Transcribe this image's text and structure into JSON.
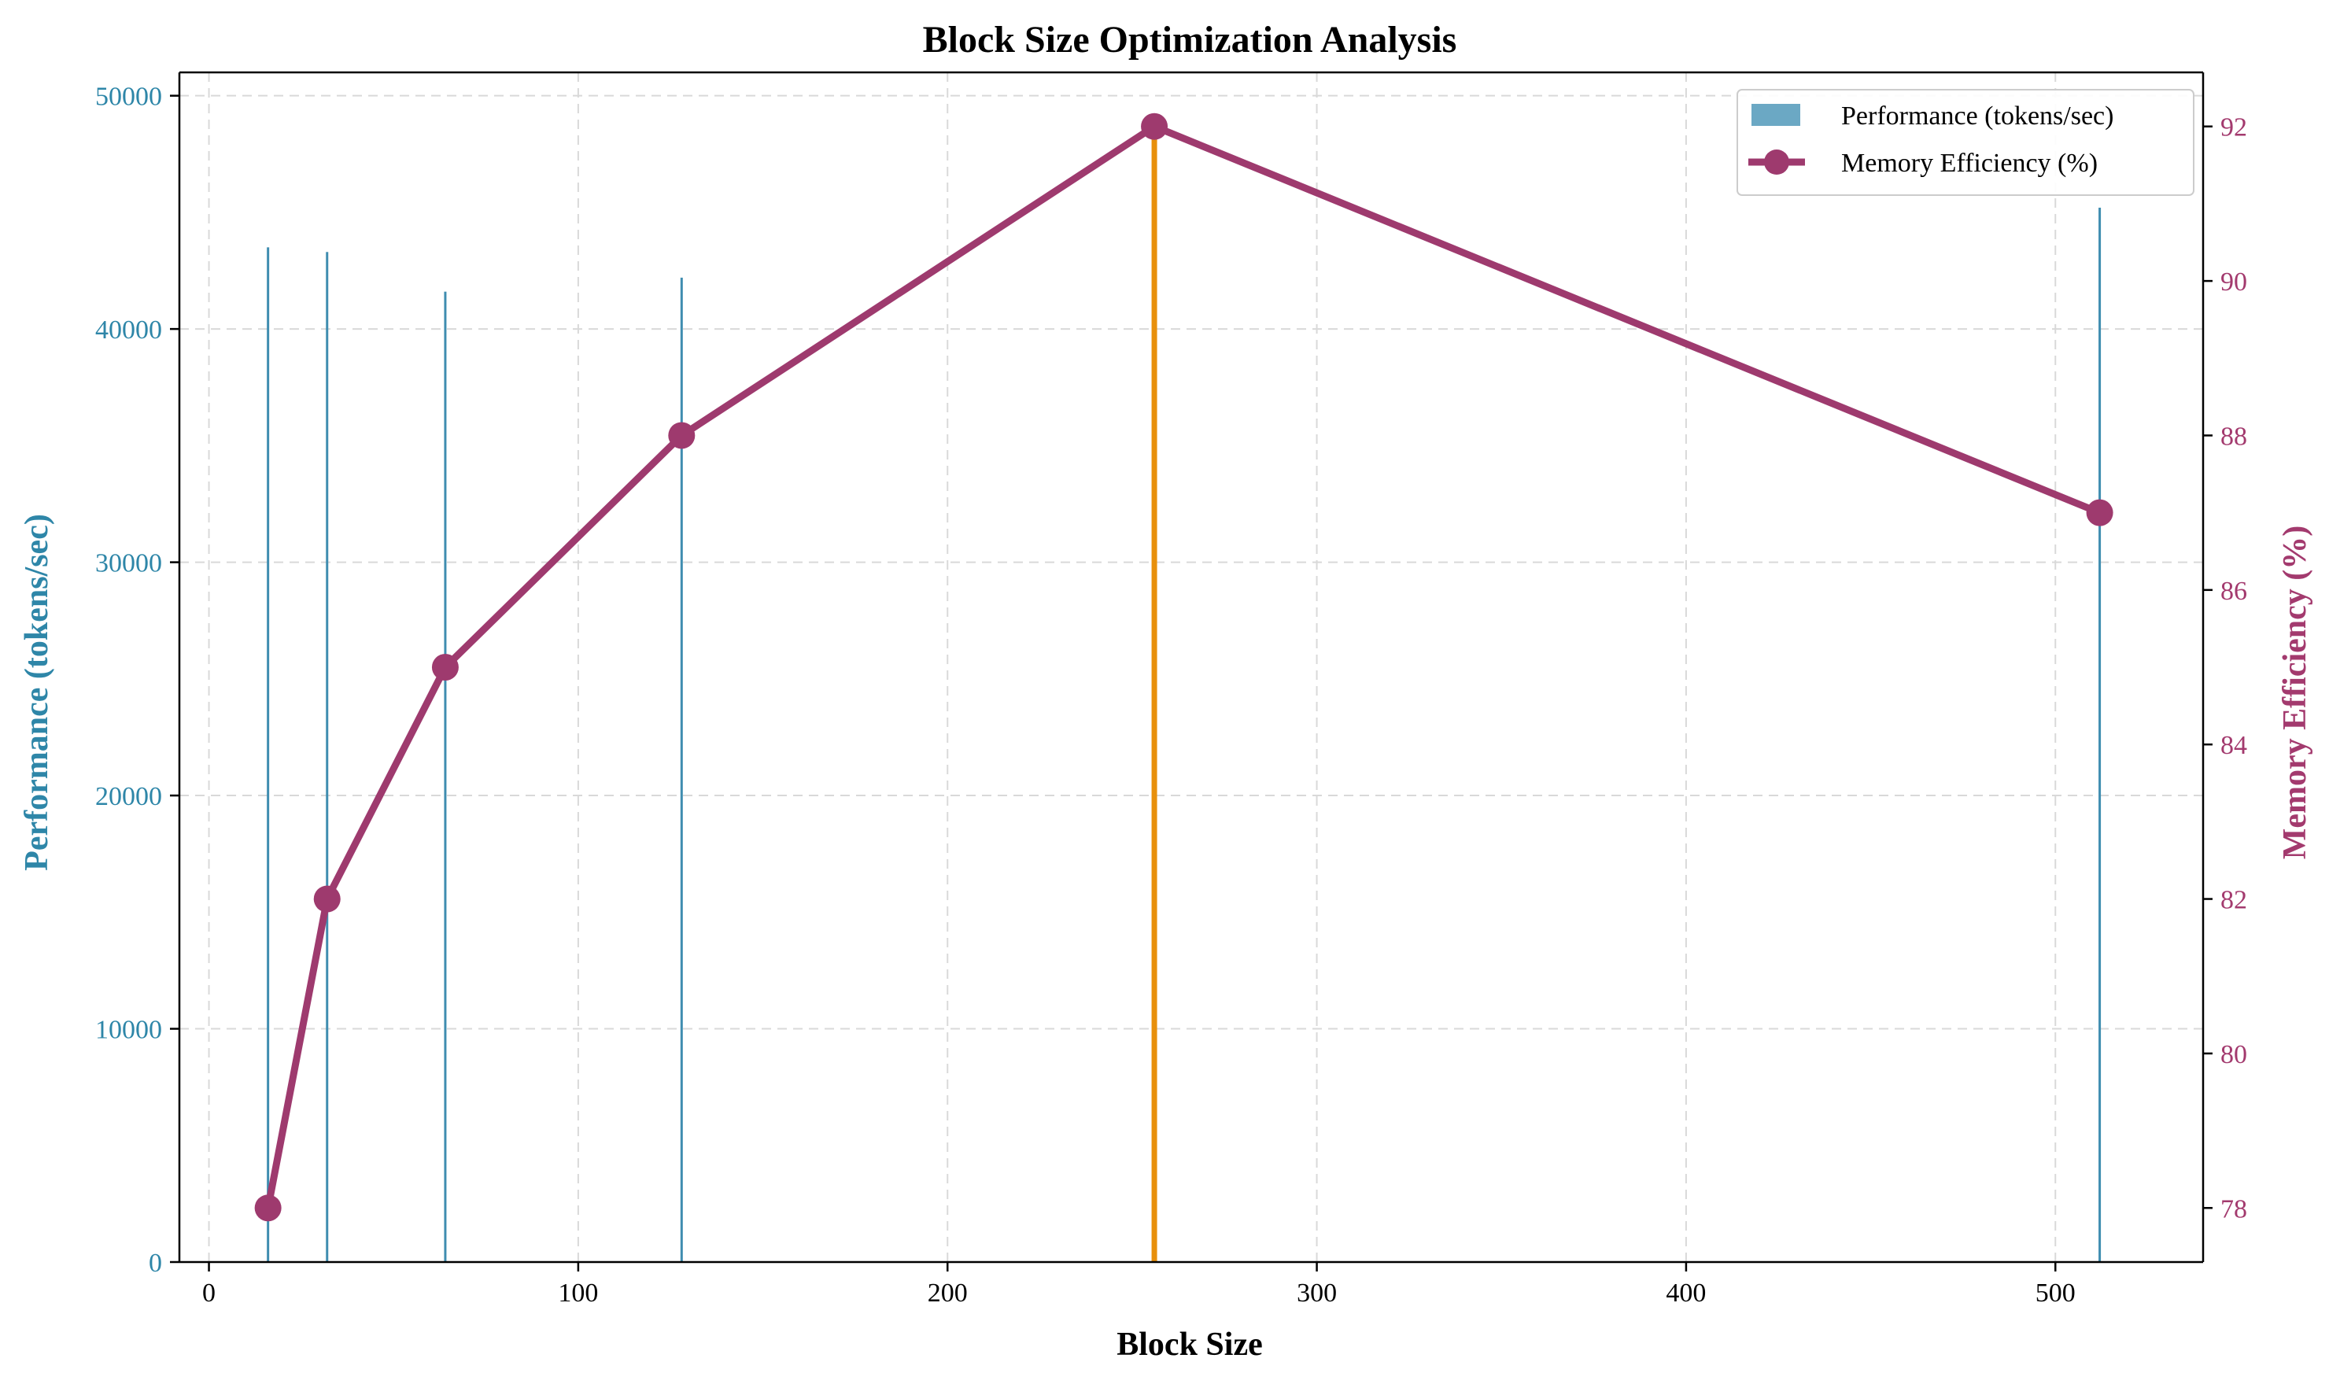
{
  "chart_data": {
    "type": "bar",
    "title": "Block Size Optimization Analysis",
    "xlabel": "Block Size",
    "ylabel": "Performance (tokens/sec)",
    "y2label": "Memory Efficiency (%)",
    "xlim": [
      -8,
      540
    ],
    "ylim": [
      0,
      51000
    ],
    "y2lim": [
      77.3,
      92.7
    ],
    "xticks": [
      0,
      100,
      200,
      300,
      400,
      500
    ],
    "yticks": [
      0,
      10000,
      20000,
      30000,
      40000,
      50000
    ],
    "y2ticks": [
      78,
      80,
      82,
      84,
      86,
      88,
      90,
      92
    ],
    "grid": true,
    "legend_position": "top-right",
    "x": [
      16,
      32,
      64,
      128,
      256,
      512
    ],
    "series": [
      {
        "name": "Performance (tokens/sec)",
        "type": "bar",
        "axis": "left",
        "values": [
          43500,
          43300,
          41600,
          42200,
          48500,
          45200
        ],
        "highlight_index": 4
      },
      {
        "name": "Memory Efficiency (%)",
        "type": "line",
        "axis": "right",
        "values": [
          78,
          82,
          85,
          88,
          92,
          87
        ]
      }
    ],
    "colors": {
      "bar": "#6ba8c4",
      "bar_edge": "#3f8db0",
      "highlight": "#e8900c",
      "line": "#9e3a6e",
      "left_axis": "#2e86a8",
      "right_axis": "#a33a6e",
      "grid": "#d9d9d9"
    }
  }
}
